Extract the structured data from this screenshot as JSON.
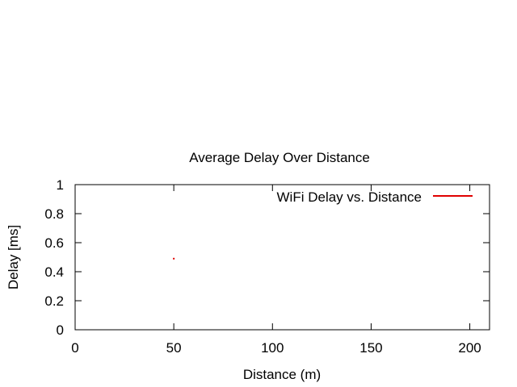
{
  "chart_data": {
    "type": "line",
    "title": "Average Delay Over Distance",
    "xlabel": "Distance (m)",
    "ylabel": "Delay [ms]",
    "xlim": [
      0,
      210
    ],
    "ylim": [
      0,
      1
    ],
    "xticks": [
      0,
      50,
      100,
      150,
      200
    ],
    "yticks": [
      0,
      0.2,
      0.4,
      0.6,
      0.8,
      1
    ],
    "ytick_labels": [
      "0",
      "0.2",
      "0.4",
      "0.6",
      "0.8",
      "1"
    ],
    "grid": false,
    "legend": "top-right",
    "series": [
      {
        "name": "WiFi Delay vs. Distance",
        "color": "#e00000",
        "x": [
          50
        ],
        "y": [
          0.49
        ]
      }
    ]
  }
}
